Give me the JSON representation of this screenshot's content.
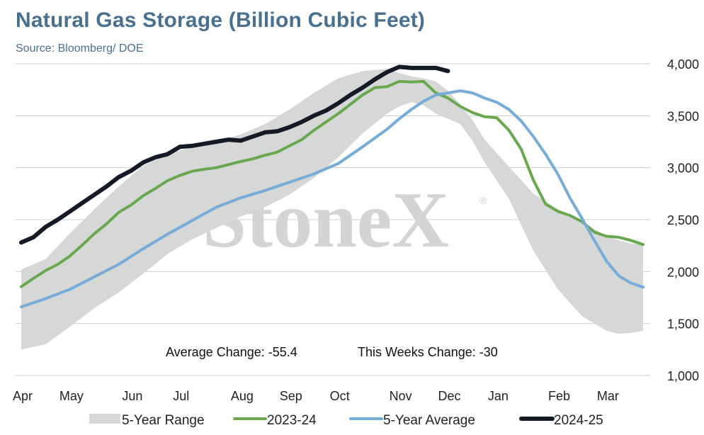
{
  "header": {
    "title": "Natural Gas Storage (Billion Cubic Feet)",
    "source": "Source: Bloomberg/ DOE"
  },
  "watermark": "StoneX",
  "annotations": {
    "average_change": "Average Change: -55.4",
    "weekly_change": "This Weeks Change: -30"
  },
  "chart_data": {
    "type": "line",
    "x_unit": "week of storage year (week 0 = first week of April)",
    "xlim": [
      0,
      51
    ],
    "ylim": [
      1000,
      4000
    ],
    "y_ticks": [
      1000,
      1500,
      2000,
      2500,
      3000,
      3500,
      4000
    ],
    "y_tick_labels": [
      "1,000",
      "1,500",
      "2,000",
      "2,500",
      "3,000",
      "3,500",
      "4,000"
    ],
    "y_axis_side": "right",
    "grid": "horizontal",
    "x_tick_labels": [
      "Apr",
      "May",
      "Jun",
      "Jul",
      "Aug",
      "Sep",
      "Oct",
      "Nov",
      "Dec",
      "Jan",
      "Feb",
      "Mar"
    ],
    "x_tick_weeks": [
      0,
      4,
      9,
      13,
      18,
      22,
      26,
      31,
      35,
      39,
      44,
      48
    ],
    "legend_position": "bottom",
    "band": {
      "name": "5-Year Range",
      "color": "#d6d8d8",
      "x": [
        0,
        2,
        4,
        6,
        8,
        10,
        12,
        14,
        16,
        18,
        20,
        22,
        24,
        26,
        28,
        30,
        31,
        32,
        33,
        34,
        35,
        36,
        37,
        38,
        40,
        42,
        44,
        46,
        48,
        49,
        50,
        51
      ],
      "low": [
        1250,
        1300,
        1470,
        1650,
        1800,
        1980,
        2170,
        2310,
        2420,
        2530,
        2620,
        2740,
        2900,
        3100,
        3330,
        3520,
        3590,
        3630,
        3600,
        3520,
        3470,
        3420,
        3260,
        3050,
        2700,
        2200,
        1830,
        1570,
        1430,
        1400,
        1410,
        1430
      ],
      "high": [
        2020,
        2120,
        2370,
        2600,
        2820,
        3020,
        3130,
        3200,
        3250,
        3320,
        3420,
        3560,
        3720,
        3860,
        3930,
        3950,
        3910,
        3880,
        3860,
        3830,
        3740,
        3610,
        3460,
        3270,
        3010,
        2750,
        2600,
        2480,
        2340,
        2300,
        2270,
        2260
      ]
    },
    "series": [
      {
        "name": "2023-24",
        "color": "#6aa84f",
        "width": 4,
        "x": [
          0,
          1,
          2,
          3,
          4,
          5,
          6,
          7,
          8,
          9,
          10,
          11,
          12,
          13,
          14,
          15,
          16,
          17,
          18,
          19,
          20,
          21,
          22,
          23,
          24,
          25,
          26,
          27,
          28,
          29,
          30,
          31,
          32,
          33,
          34,
          35,
          36,
          37,
          38,
          39,
          40,
          41,
          42,
          43,
          44,
          45,
          46,
          47,
          48,
          49,
          50,
          51
        ],
        "values": [
          1855,
          1935,
          2010,
          2070,
          2150,
          2255,
          2365,
          2460,
          2570,
          2640,
          2730,
          2800,
          2875,
          2925,
          2965,
          2985,
          3000,
          3030,
          3060,
          3085,
          3120,
          3150,
          3210,
          3270,
          3360,
          3440,
          3520,
          3610,
          3700,
          3770,
          3780,
          3830,
          3825,
          3830,
          3720,
          3670,
          3590,
          3530,
          3490,
          3480,
          3360,
          3180,
          2880,
          2650,
          2580,
          2540,
          2480,
          2380,
          2340,
          2330,
          2300,
          2260
        ]
      },
      {
        "name": "5-Year Average",
        "color": "#78acd8",
        "width": 4,
        "x": [
          0,
          2,
          4,
          6,
          8,
          10,
          12,
          14,
          16,
          18,
          20,
          22,
          24,
          26,
          28,
          30,
          31,
          32,
          33,
          34,
          35,
          36,
          37,
          38,
          39,
          40,
          41,
          42,
          43,
          44,
          45,
          46,
          47,
          48,
          49,
          50,
          51
        ],
        "values": [
          1660,
          1740,
          1830,
          1950,
          2070,
          2220,
          2360,
          2490,
          2620,
          2710,
          2780,
          2860,
          2940,
          3040,
          3200,
          3370,
          3470,
          3560,
          3640,
          3700,
          3720,
          3740,
          3720,
          3670,
          3630,
          3560,
          3450,
          3300,
          3130,
          2940,
          2710,
          2510,
          2300,
          2100,
          1960,
          1890,
          1850
        ]
      },
      {
        "name": "2024-25",
        "color": "#141b26",
        "width": 6,
        "x": [
          0,
          1,
          2,
          3,
          4,
          5,
          6,
          7,
          8,
          9,
          10,
          11,
          12,
          13,
          14,
          15,
          16,
          17,
          18,
          19,
          20,
          21,
          22,
          23,
          24,
          25,
          26,
          27,
          28,
          29,
          30,
          31,
          32,
          33,
          34,
          35
        ],
        "values": [
          2280,
          2330,
          2430,
          2500,
          2580,
          2660,
          2740,
          2820,
          2910,
          2970,
          3050,
          3100,
          3130,
          3200,
          3210,
          3230,
          3250,
          3270,
          3260,
          3300,
          3340,
          3350,
          3390,
          3440,
          3500,
          3550,
          3620,
          3700,
          3770,
          3850,
          3920,
          3970,
          3960,
          3960,
          3960,
          3930
        ]
      }
    ]
  }
}
